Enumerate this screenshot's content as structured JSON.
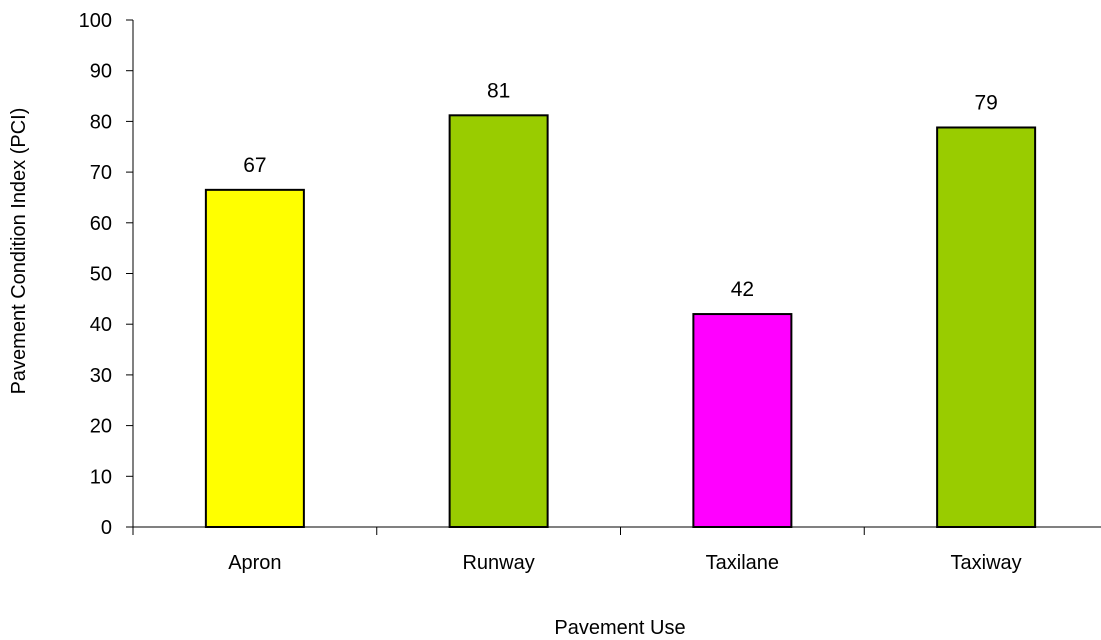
{
  "chart_data": {
    "type": "bar",
    "title": "",
    "xlabel": "Pavement Use",
    "ylabel": "Pavement Condition Index (PCI)",
    "ylim": [
      0,
      100
    ],
    "yticks": [
      0,
      10,
      20,
      30,
      40,
      50,
      60,
      70,
      80,
      90,
      100
    ],
    "categories": [
      "Apron",
      "Runway",
      "Taxilane",
      "Taxiway"
    ],
    "values": [
      66.5,
      81.2,
      42.0,
      78.8
    ],
    "data_labels": [
      "67",
      "81",
      "42",
      "79"
    ],
    "bar_colors": [
      "#ffff00",
      "#99cc00",
      "#ff00ff",
      "#99cc00"
    ],
    "bar_edge_color": "#000000",
    "grid": false,
    "legend": "none"
  }
}
